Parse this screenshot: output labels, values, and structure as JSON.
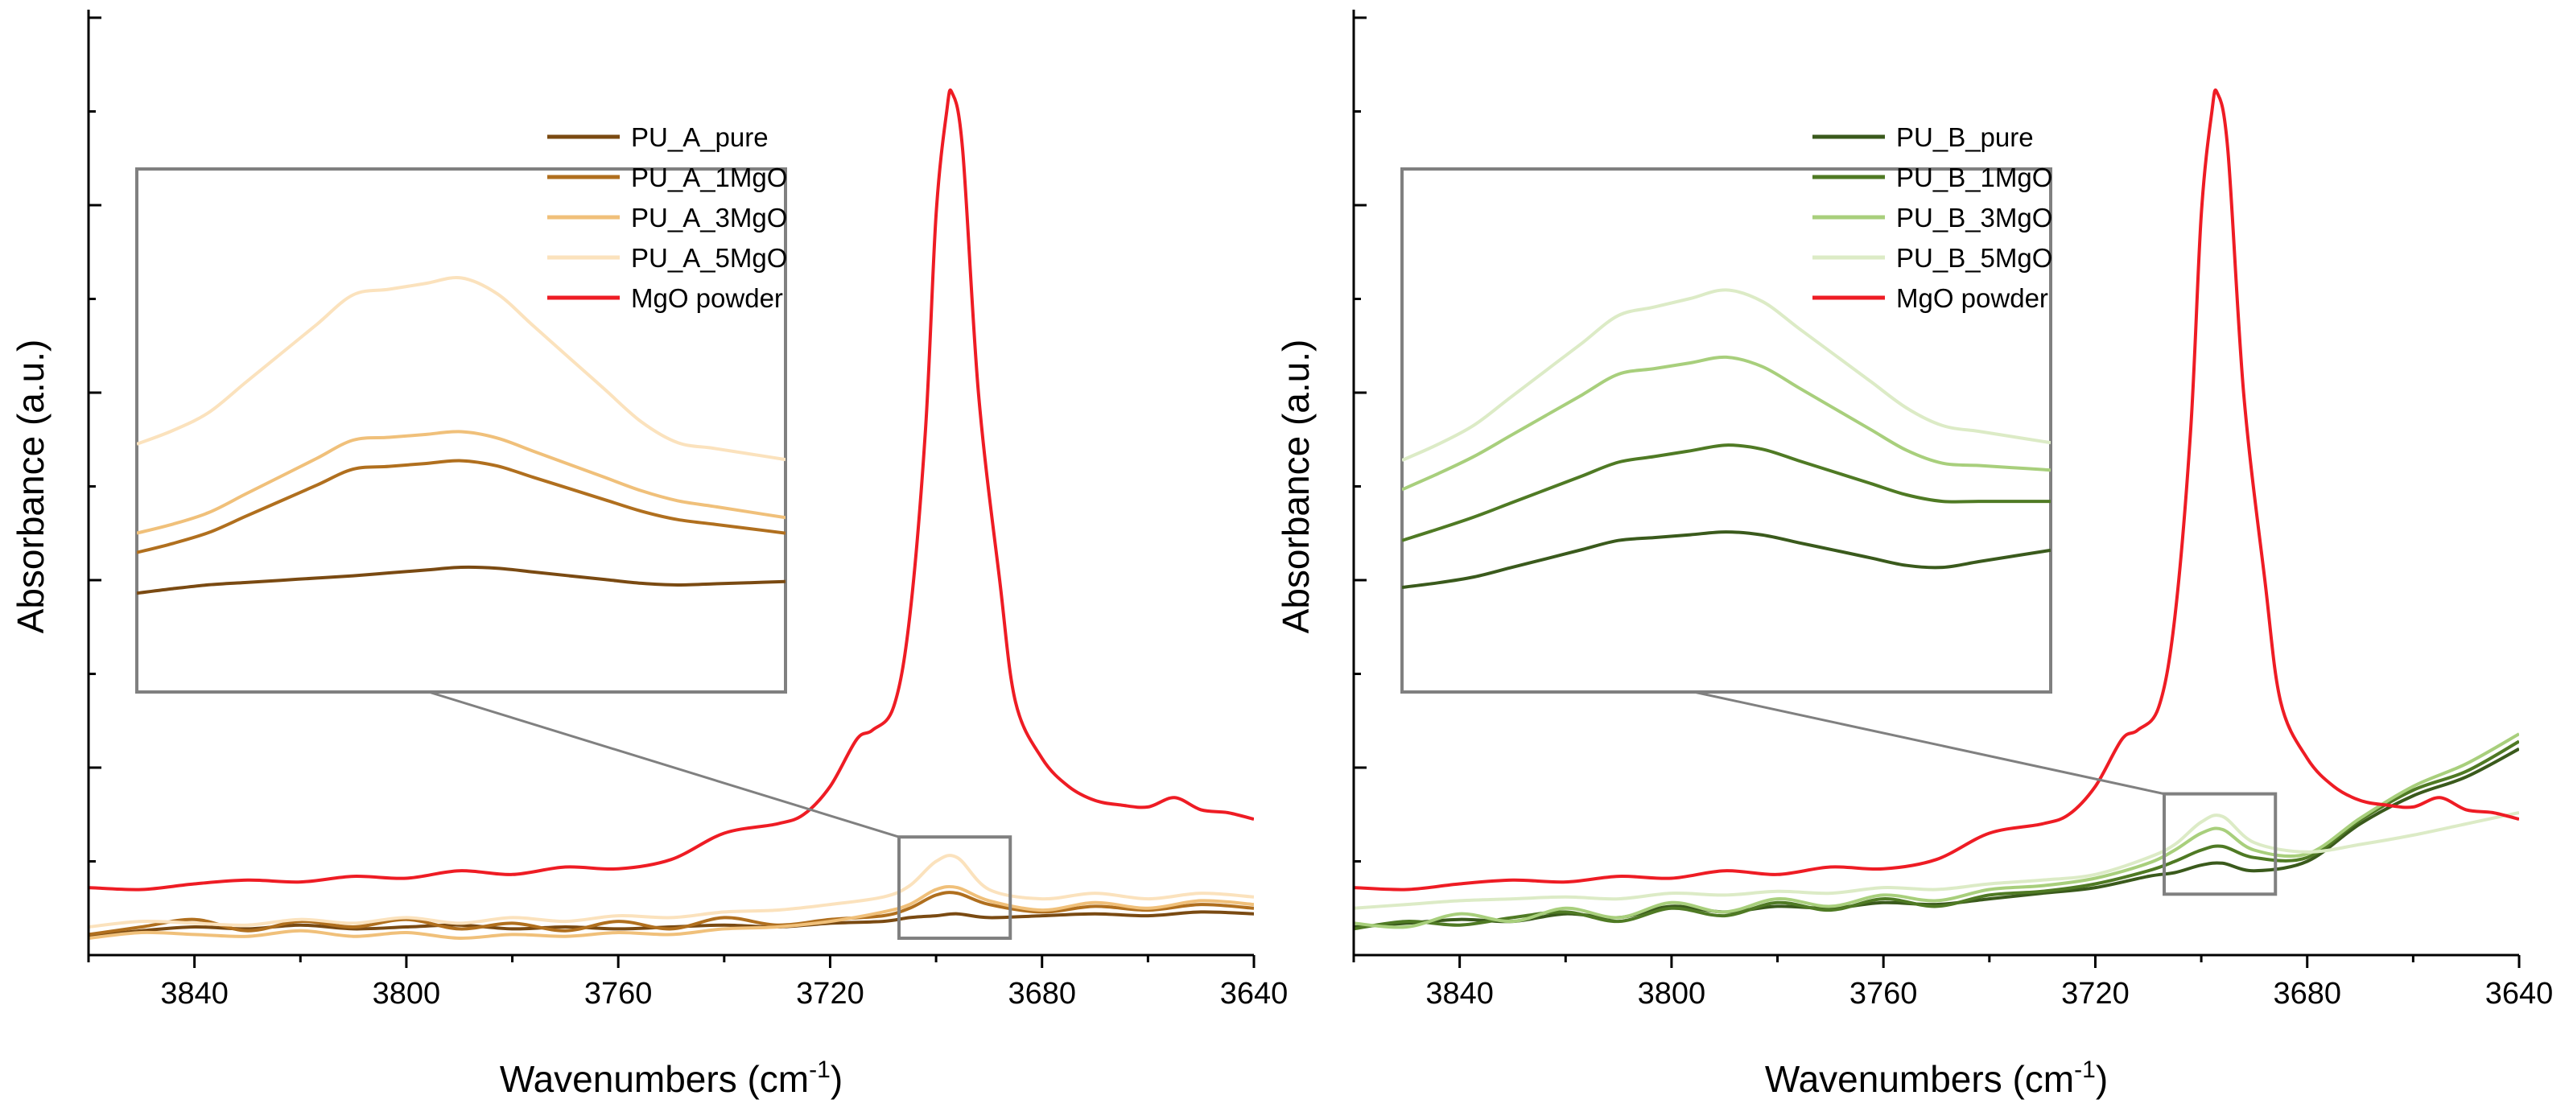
{
  "chart_data": [
    {
      "type": "line",
      "panel": "left",
      "title": "",
      "xlabel": "Wavenumbers (cm⁻¹)",
      "xlabel_base": "Wavenumbers (cm",
      "xlabel_sup": "-1",
      "xlabel_close": ")",
      "ylabel": "Absorbance (a.u.)",
      "xlim": [
        3860,
        3640
      ],
      "ylim": [
        0,
        1
      ],
      "x_ticks": [
        3840,
        3800,
        3760,
        3720,
        3680,
        3640
      ],
      "x_tick_labels": [
        "3840",
        "3800",
        "3760",
        "3720",
        "3680",
        "3640"
      ],
      "y_major_ticks": [
        0,
        0.2,
        0.4,
        0.6,
        0.8,
        1.0
      ],
      "legend_position": "top-center",
      "legend": [
        "PU_A_pure",
        "PU_A_1MgO",
        "PU_A_3MgO",
        "PU_A_5MgO",
        "MgO powder"
      ],
      "zoom_region": {
        "x": [
          3707,
          3686
        ],
        "y": [
          0.018,
          0.126
        ]
      },
      "series": [
        {
          "name": "PU_A_pure",
          "color": "#7a4a12",
          "x": [
            3860,
            3850,
            3840,
            3830,
            3820,
            3810,
            3800,
            3790,
            3780,
            3770,
            3760,
            3750,
            3740,
            3730,
            3720,
            3710,
            3705,
            3700,
            3696,
            3690,
            3680,
            3670,
            3660,
            3650,
            3640
          ],
          "y": [
            0.02,
            0.026,
            0.03,
            0.028,
            0.032,
            0.028,
            0.03,
            0.032,
            0.028,
            0.03,
            0.028,
            0.03,
            0.032,
            0.03,
            0.034,
            0.036,
            0.04,
            0.042,
            0.044,
            0.04,
            0.042,
            0.044,
            0.042,
            0.046,
            0.044
          ]
        },
        {
          "name": "PU_A_1MgO",
          "color": "#b06f1e",
          "x": [
            3860,
            3850,
            3840,
            3830,
            3820,
            3810,
            3800,
            3790,
            3780,
            3770,
            3760,
            3750,
            3740,
            3730,
            3720,
            3710,
            3705,
            3700,
            3696,
            3690,
            3680,
            3670,
            3660,
            3650,
            3640
          ],
          "y": [
            0.022,
            0.03,
            0.038,
            0.026,
            0.036,
            0.03,
            0.038,
            0.028,
            0.034,
            0.026,
            0.036,
            0.028,
            0.04,
            0.032,
            0.038,
            0.042,
            0.05,
            0.064,
            0.066,
            0.054,
            0.046,
            0.052,
            0.048,
            0.054,
            0.05
          ]
        },
        {
          "name": "PU_A_3MgO",
          "color": "#f0c07a",
          "x": [
            3860,
            3850,
            3840,
            3830,
            3820,
            3810,
            3800,
            3790,
            3780,
            3770,
            3760,
            3750,
            3740,
            3730,
            3720,
            3710,
            3705,
            3700,
            3696,
            3690,
            3680,
            3670,
            3660,
            3650,
            3640
          ],
          "y": [
            0.018,
            0.024,
            0.022,
            0.02,
            0.026,
            0.02,
            0.024,
            0.018,
            0.022,
            0.02,
            0.024,
            0.022,
            0.028,
            0.03,
            0.036,
            0.046,
            0.054,
            0.07,
            0.072,
            0.058,
            0.048,
            0.056,
            0.05,
            0.058,
            0.054
          ]
        },
        {
          "name": "PU_A_5MgO",
          "color": "#fbe2bd",
          "x": [
            3860,
            3850,
            3840,
            3830,
            3820,
            3810,
            3800,
            3790,
            3780,
            3770,
            3760,
            3750,
            3740,
            3730,
            3720,
            3710,
            3705,
            3700,
            3696,
            3690,
            3680,
            3670,
            3660,
            3650,
            3640
          ],
          "y": [
            0.03,
            0.036,
            0.034,
            0.032,
            0.038,
            0.034,
            0.04,
            0.034,
            0.04,
            0.036,
            0.042,
            0.04,
            0.046,
            0.048,
            0.054,
            0.062,
            0.074,
            0.1,
            0.104,
            0.07,
            0.06,
            0.066,
            0.06,
            0.066,
            0.062
          ]
        },
        {
          "name": "MgO powder",
          "color": "#ee1c24",
          "x": [
            3860,
            3850,
            3840,
            3830,
            3820,
            3810,
            3800,
            3790,
            3780,
            3770,
            3760,
            3750,
            3740,
            3730,
            3725,
            3720,
            3715,
            3712,
            3708,
            3705,
            3702,
            3700,
            3698,
            3697,
            3695,
            3692,
            3688,
            3685,
            3680,
            3675,
            3670,
            3665,
            3660,
            3655,
            3650,
            3645,
            3640
          ],
          "y": [
            0.072,
            0.07,
            0.076,
            0.08,
            0.078,
            0.084,
            0.082,
            0.09,
            0.086,
            0.094,
            0.092,
            0.102,
            0.13,
            0.14,
            0.15,
            0.18,
            0.23,
            0.24,
            0.265,
            0.36,
            0.56,
            0.79,
            0.9,
            0.92,
            0.86,
            0.6,
            0.4,
            0.27,
            0.21,
            0.18,
            0.165,
            0.16,
            0.158,
            0.168,
            0.155,
            0.152,
            0.145
          ]
        }
      ]
    },
    {
      "type": "line",
      "panel": "right",
      "title": "",
      "xlabel": "Wavenumbers (cm⁻¹)",
      "xlabel_base": "Wavenumbers (cm",
      "xlabel_sup": "-1",
      "xlabel_close": ")",
      "ylabel": "Absorbance (a.u.)",
      "xlim": [
        3860,
        3640
      ],
      "ylim": [
        0,
        1
      ],
      "x_ticks": [
        3840,
        3800,
        3760,
        3720,
        3680,
        3640
      ],
      "x_tick_labels": [
        "3840",
        "3800",
        "3760",
        "3720",
        "3680",
        "3640"
      ],
      "y_major_ticks": [
        0,
        0.2,
        0.4,
        0.6,
        0.8,
        1.0
      ],
      "legend_position": "top-center",
      "legend": [
        "PU_B_pure",
        "PU_B_1MgO",
        "PU_B_3MgO",
        "PU_B_5MgO",
        "MgO powder"
      ],
      "zoom_region": {
        "x": [
          3707,
          3686
        ],
        "y": [
          0.065,
          0.172
        ]
      },
      "series": [
        {
          "name": "PU_B_pure",
          "color": "#3a5a1c",
          "x": [
            3860,
            3850,
            3840,
            3830,
            3820,
            3810,
            3800,
            3790,
            3780,
            3770,
            3760,
            3750,
            3740,
            3730,
            3720,
            3710,
            3705,
            3700,
            3696,
            3690,
            3680,
            3670,
            3660,
            3650,
            3640
          ],
          "y": [
            0.03,
            0.034,
            0.038,
            0.036,
            0.044,
            0.04,
            0.052,
            0.046,
            0.052,
            0.05,
            0.056,
            0.054,
            0.06,
            0.066,
            0.072,
            0.084,
            0.088,
            0.096,
            0.098,
            0.09,
            0.1,
            0.14,
            0.17,
            0.19,
            0.22
          ]
        },
        {
          "name": "PU_B_1MgO",
          "color": "#4f7a24",
          "x": [
            3860,
            3850,
            3840,
            3830,
            3820,
            3810,
            3800,
            3790,
            3780,
            3770,
            3760,
            3750,
            3740,
            3730,
            3720,
            3710,
            3705,
            3700,
            3696,
            3690,
            3680,
            3670,
            3660,
            3650,
            3640
          ],
          "y": [
            0.028,
            0.036,
            0.032,
            0.04,
            0.046,
            0.036,
            0.05,
            0.042,
            0.056,
            0.048,
            0.06,
            0.052,
            0.064,
            0.068,
            0.076,
            0.09,
            0.1,
            0.112,
            0.116,
            0.104,
            0.104,
            0.144,
            0.176,
            0.196,
            0.228
          ]
        },
        {
          "name": "PU_B_3MgO",
          "color": "#a8cf7c",
          "x": [
            3860,
            3850,
            3840,
            3830,
            3820,
            3810,
            3800,
            3790,
            3780,
            3770,
            3760,
            3750,
            3740,
            3730,
            3720,
            3710,
            3705,
            3700,
            3696,
            3690,
            3680,
            3670,
            3660,
            3650,
            3640
          ],
          "y": [
            0.034,
            0.03,
            0.044,
            0.036,
            0.05,
            0.04,
            0.056,
            0.046,
            0.06,
            0.052,
            0.064,
            0.058,
            0.07,
            0.074,
            0.082,
            0.098,
            0.112,
            0.13,
            0.134,
            0.112,
            0.108,
            0.146,
            0.18,
            0.204,
            0.236
          ]
        },
        {
          "name": "PU_B_5MgO",
          "color": "#dcebc6",
          "x": [
            3860,
            3850,
            3840,
            3830,
            3820,
            3810,
            3800,
            3790,
            3780,
            3770,
            3760,
            3750,
            3740,
            3730,
            3720,
            3710,
            3705,
            3700,
            3696,
            3690,
            3680,
            3670,
            3660,
            3650,
            3640
          ],
          "y": [
            0.05,
            0.054,
            0.058,
            0.06,
            0.062,
            0.06,
            0.066,
            0.064,
            0.068,
            0.066,
            0.072,
            0.07,
            0.076,
            0.08,
            0.086,
            0.104,
            0.118,
            0.142,
            0.148,
            0.12,
            0.11,
            0.118,
            0.128,
            0.14,
            0.152
          ]
        },
        {
          "name": "MgO powder",
          "color": "#ee1c24",
          "x": [
            3860,
            3850,
            3840,
            3830,
            3820,
            3810,
            3800,
            3790,
            3780,
            3770,
            3760,
            3750,
            3740,
            3730,
            3725,
            3720,
            3715,
            3712,
            3708,
            3705,
            3702,
            3700,
            3698,
            3697,
            3695,
            3692,
            3688,
            3685,
            3680,
            3675,
            3670,
            3665,
            3660,
            3655,
            3650,
            3645,
            3640
          ],
          "y": [
            0.072,
            0.07,
            0.076,
            0.08,
            0.078,
            0.084,
            0.082,
            0.09,
            0.086,
            0.094,
            0.092,
            0.102,
            0.13,
            0.14,
            0.15,
            0.18,
            0.23,
            0.24,
            0.265,
            0.36,
            0.56,
            0.79,
            0.9,
            0.92,
            0.86,
            0.6,
            0.4,
            0.27,
            0.21,
            0.18,
            0.165,
            0.16,
            0.158,
            0.168,
            0.155,
            0.152,
            0.145
          ]
        }
      ]
    }
  ]
}
